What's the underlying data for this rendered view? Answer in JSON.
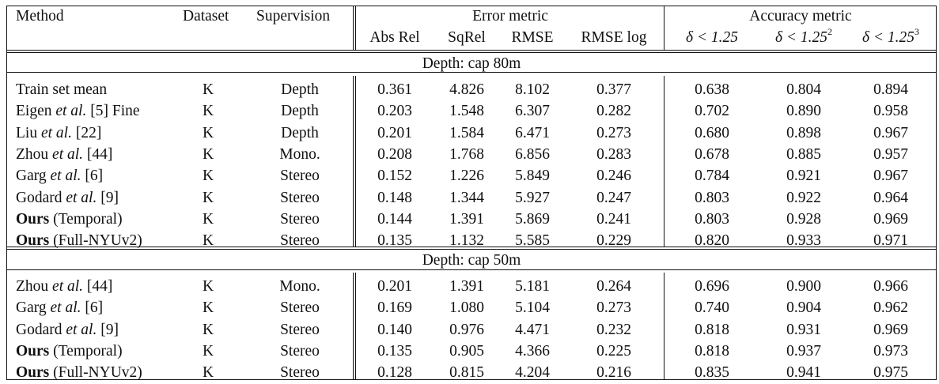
{
  "headers": {
    "method": "Method",
    "dataset": "Dataset",
    "supervision": "Supervision",
    "error_group": "Error metric",
    "accuracy_group": "Accuracy metric",
    "abs_rel": "Abs Rel",
    "sq_rel": "SqRel",
    "rmse": "RMSE",
    "rmse_log": "RMSE log",
    "delta1": "δ < 1.25",
    "delta2_base": "δ < 1.25",
    "delta2_exp": "2",
    "delta3_base": "δ < 1.25",
    "delta3_exp": "3"
  },
  "sections": [
    {
      "title": "Depth: cap 80m",
      "rows": [
        {
          "method": {
            "name": "Train set mean",
            "bold": "",
            "italic": "",
            "suffix": ""
          },
          "dataset": "K",
          "supervision": "Depth",
          "values": [
            "0.361",
            "4.826",
            "8.102",
            "0.377",
            "0.638",
            "0.804",
            "0.894"
          ]
        },
        {
          "method": {
            "name": "Eigen ",
            "bold": "",
            "italic": "et al.",
            "suffix": " [5] Fine"
          },
          "dataset": "K",
          "supervision": "Depth",
          "values": [
            "0.203",
            "1.548",
            "6.307",
            "0.282",
            "0.702",
            "0.890",
            "0.958"
          ]
        },
        {
          "method": {
            "name": "Liu ",
            "bold": "",
            "italic": "et al.",
            "suffix": " [22]"
          },
          "dataset": "K",
          "supervision": "Depth",
          "values": [
            "0.201",
            "1.584",
            "6.471",
            "0.273",
            "0.680",
            "0.898",
            "0.967"
          ]
        },
        {
          "method": {
            "name": "Zhou ",
            "bold": "",
            "italic": "et al.",
            "suffix": " [44]"
          },
          "dataset": "K",
          "supervision": "Mono.",
          "values": [
            "0.208",
            "1.768",
            "6.856",
            "0.283",
            "0.678",
            "0.885",
            "0.957"
          ]
        },
        {
          "method": {
            "name": "Garg ",
            "bold": "",
            "italic": "et al.",
            "suffix": " [6]"
          },
          "dataset": "K",
          "supervision": "Stereo",
          "values": [
            "0.152",
            "1.226",
            "5.849",
            "0.246",
            "0.784",
            "0.921",
            "0.967"
          ]
        },
        {
          "method": {
            "name": "Godard ",
            "bold": "",
            "italic": "et al.",
            "suffix": " [9]"
          },
          "dataset": "K",
          "supervision": "Stereo",
          "values": [
            "0.148",
            "1.344",
            "5.927",
            "0.247",
            "0.803",
            "0.922",
            "0.964"
          ]
        },
        {
          "method": {
            "name": "",
            "bold": "Ours",
            "italic": "",
            "suffix": " (Temporal)"
          },
          "dataset": "K",
          "supervision": "Stereo",
          "values": [
            "0.144",
            "1.391",
            "5.869",
            "0.241",
            "0.803",
            "0.928",
            "0.969"
          ]
        },
        {
          "method": {
            "name": "",
            "bold": "Ours",
            "italic": "",
            "suffix": " (Full-NYUv2)"
          },
          "dataset": "K",
          "supervision": "Stereo",
          "values": [
            "0.135",
            "1.132",
            "5.585",
            "0.229",
            "0.820",
            "0.933",
            "0.971"
          ]
        }
      ]
    },
    {
      "title": "Depth: cap 50m",
      "rows": [
        {
          "method": {
            "name": "Zhou ",
            "bold": "",
            "italic": "et al.",
            "suffix": " [44]"
          },
          "dataset": "K",
          "supervision": "Mono.",
          "values": [
            "0.201",
            "1.391",
            "5.181",
            "0.264",
            "0.696",
            "0.900",
            "0.966"
          ]
        },
        {
          "method": {
            "name": "Garg ",
            "bold": "",
            "italic": "et al.",
            "suffix": " [6]"
          },
          "dataset": "K",
          "supervision": "Stereo",
          "values": [
            "0.169",
            "1.080",
            "5.104",
            "0.273",
            "0.740",
            "0.904",
            "0.962"
          ]
        },
        {
          "method": {
            "name": "Godard ",
            "bold": "",
            "italic": "et al.",
            "suffix": " [9]"
          },
          "dataset": "K",
          "supervision": "Stereo",
          "values": [
            "0.140",
            "0.976",
            "4.471",
            "0.232",
            "0.818",
            "0.931",
            "0.969"
          ]
        },
        {
          "method": {
            "name": "",
            "bold": "Ours",
            "italic": "",
            "suffix": " (Temporal)"
          },
          "dataset": "K",
          "supervision": "Stereo",
          "values": [
            "0.135",
            "0.905",
            "4.366",
            "0.225",
            "0.818",
            "0.937",
            "0.973"
          ]
        },
        {
          "method": {
            "name": "",
            "bold": "Ours",
            "italic": "",
            "suffix": " (Full-NYUv2)"
          },
          "dataset": "K",
          "supervision": "Stereo",
          "values": [
            "0.128",
            "0.815",
            "4.204",
            "0.216",
            "0.835",
            "0.941",
            "0.975"
          ]
        }
      ]
    }
  ]
}
